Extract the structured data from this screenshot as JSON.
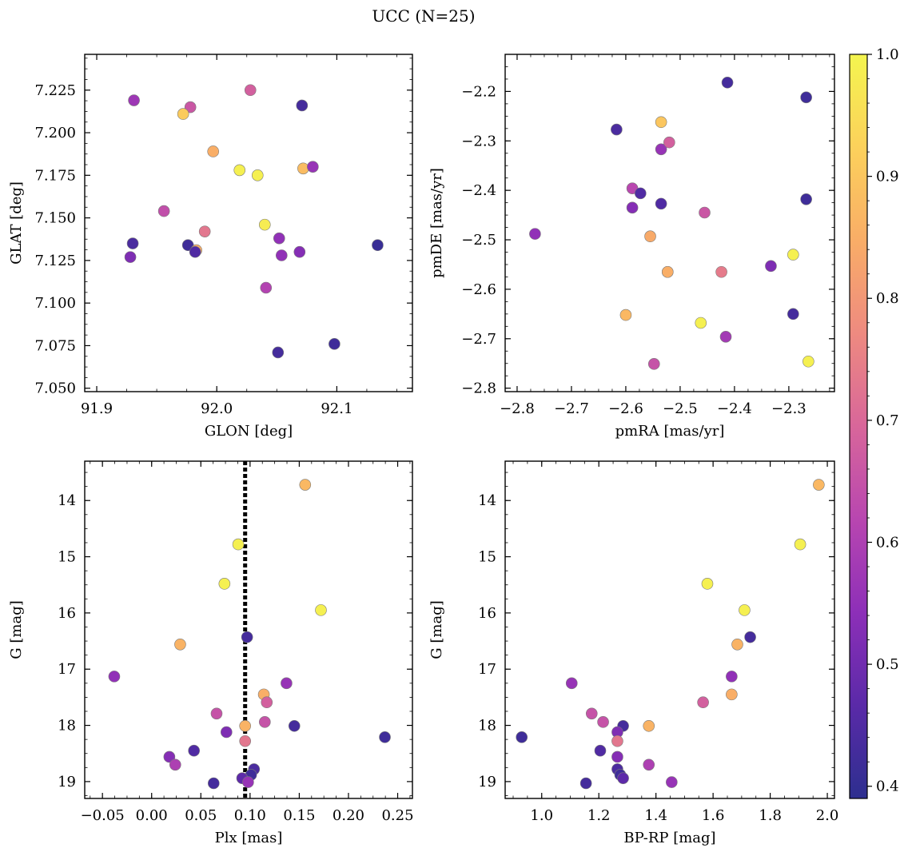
{
  "figure_title": "UCC (N=25)",
  "colorbar": {
    "min": 0.39,
    "max": 1.0,
    "ticks": [
      0.4,
      0.5,
      0.6,
      0.7,
      0.8,
      0.9,
      1.0
    ],
    "tick_labels": [
      "0.4",
      "0.5",
      "0.6",
      "0.7",
      "0.8",
      "0.9",
      "1.0"
    ],
    "colormap": "plasma",
    "stops": [
      "#2d2f8f",
      "#5a2aa8",
      "#8d2fb8",
      "#b846b0",
      "#d8669a",
      "#ee8a80",
      "#f9ad67",
      "#fcd15b",
      "#f4f54f"
    ]
  },
  "chart_data": [
    {
      "type": "scatter",
      "id": "glon-glat",
      "title": "",
      "xlabel": "GLON [deg]",
      "ylabel": "GLAT [deg]",
      "xlim": [
        91.89,
        92.163
      ],
      "ylim": [
        7.048,
        7.246
      ],
      "y_inverted": false,
      "xticks": [
        91.9,
        92.0,
        92.1
      ],
      "xtick_labels": [
        "91.9",
        "92.0",
        "92.1"
      ],
      "yticks": [
        7.05,
        7.075,
        7.1,
        7.125,
        7.15,
        7.175,
        7.2,
        7.225
      ],
      "ytick_labels": [
        "7.050",
        "7.075",
        "7.100",
        "7.125",
        "7.150",
        "7.175",
        "7.200",
        "7.225"
      ],
      "x": [
        91.931,
        92.028,
        92.071,
        91.978,
        91.972,
        91.997,
        92.019,
        92.034,
        92.072,
        92.08,
        91.956,
        92.04,
        91.99,
        91.93,
        91.976,
        91.983,
        91.982,
        92.052,
        92.054,
        92.069,
        92.134,
        92.041,
        92.051,
        92.098,
        91.928
      ],
      "y": [
        7.219,
        7.225,
        7.216,
        7.215,
        7.211,
        7.189,
        7.178,
        7.175,
        7.179,
        7.18,
        7.154,
        7.146,
        7.142,
        7.135,
        7.134,
        7.131,
        7.13,
        7.138,
        7.128,
        7.13,
        7.134,
        7.109,
        7.071,
        7.076,
        7.127
      ],
      "c": [
        0.57,
        0.68,
        0.43,
        0.66,
        0.91,
        0.85,
        0.99,
        0.99,
        0.88,
        0.56,
        0.64,
        0.98,
        0.73,
        0.44,
        0.42,
        0.85,
        0.45,
        0.55,
        0.55,
        0.53,
        0.41,
        0.61,
        0.43,
        0.42,
        0.52
      ]
    },
    {
      "type": "scatter",
      "id": "pmra-pmde",
      "title": "",
      "xlabel": "pmRA [mas/yr]",
      "ylabel": "pmDE [mas/yr]",
      "xlim": [
        -2.822,
        -2.216
      ],
      "ylim": [
        -2.807,
        -2.125
      ],
      "y_inverted": false,
      "xticks": [
        -2.8,
        -2.7,
        -2.6,
        -2.5,
        -2.4,
        -2.3
      ],
      "xtick_labels": [
        "−2.8",
        "−2.7",
        "−2.6",
        "−2.5",
        "−2.4",
        "−2.3"
      ],
      "yticks": [
        -2.8,
        -2.7,
        -2.6,
        -2.5,
        -2.4,
        -2.3,
        -2.2
      ],
      "ytick_labels": [
        "−2.8",
        "−2.7",
        "−2.6",
        "−2.5",
        "−2.4",
        "−2.3",
        "−2.2"
      ],
      "x": [
        -2.413,
        -2.268,
        -2.617,
        -2.535,
        -2.535,
        -2.52,
        -2.588,
        -2.573,
        -2.535,
        -2.588,
        -2.455,
        -2.268,
        -2.767,
        -2.555,
        -2.292,
        -2.333,
        -2.523,
        -2.523,
        -2.424,
        -2.6,
        -2.462,
        -2.292,
        -2.416,
        -2.264,
        -2.548
      ],
      "y": [
        -2.182,
        -2.212,
        -2.277,
        -2.262,
        -2.317,
        -2.303,
        -2.396,
        -2.406,
        -2.427,
        -2.435,
        -2.445,
        -2.418,
        -2.488,
        -2.493,
        -2.53,
        -2.553,
        -2.565,
        -2.565,
        -2.565,
        -2.652,
        -2.668,
        -2.65,
        -2.696,
        -2.746,
        -2.751
      ],
      "c": [
        0.43,
        0.42,
        0.44,
        0.9,
        0.56,
        0.68,
        0.62,
        0.45,
        0.45,
        0.53,
        0.66,
        0.42,
        0.55,
        0.84,
        0.99,
        0.52,
        0.43,
        0.85,
        0.74,
        0.87,
        0.99,
        0.43,
        0.58,
        0.99,
        0.65
      ]
    },
    {
      "type": "scatter",
      "id": "plx-g",
      "title": "",
      "xlabel": "Plx [mas]",
      "ylabel": "G [mag]",
      "xlim": [
        -0.068,
        0.265
      ],
      "ylim": [
        19.3,
        13.3
      ],
      "y_inverted": true,
      "xticks": [
        -0.05,
        0.0,
        0.05,
        0.1,
        0.15,
        0.2,
        0.25
      ],
      "xtick_labels": [
        "−0.05",
        "0.00",
        "0.05",
        "0.10",
        "0.15",
        "0.20",
        "0.25"
      ],
      "yticks": [
        14,
        15,
        16,
        17,
        18,
        19
      ],
      "ytick_labels": [
        "14",
        "15",
        "16",
        "17",
        "18",
        "19"
      ],
      "vline": {
        "x": 0.095,
        "style": "dotted"
      },
      "x": [
        0.156,
        0.088,
        0.074,
        0.172,
        0.097,
        0.029,
        -0.038,
        0.137,
        0.114,
        0.117,
        0.066,
        0.115,
        0.095,
        0.145,
        0.076,
        0.237,
        0.095,
        0.043,
        0.018,
        0.024,
        0.104,
        0.101,
        0.092,
        0.098,
        0.063
      ],
      "y": [
        13.72,
        14.78,
        15.48,
        15.95,
        16.43,
        16.56,
        17.13,
        17.25,
        17.45,
        17.59,
        17.79,
        17.94,
        18.01,
        18.01,
        18.12,
        18.21,
        18.28,
        18.45,
        18.56,
        18.7,
        18.78,
        18.88,
        18.94,
        19.01,
        19.03
      ],
      "c": [
        0.87,
        0.99,
        0.99,
        0.99,
        0.43,
        0.86,
        0.55,
        0.56,
        0.85,
        0.68,
        0.65,
        0.65,
        0.86,
        0.43,
        0.52,
        0.42,
        0.73,
        0.45,
        0.53,
        0.6,
        0.44,
        0.42,
        0.47,
        0.56,
        0.43
      ]
    },
    {
      "type": "scatter",
      "id": "bprp-g",
      "title": "",
      "xlabel": "BP-RP [mag]",
      "ylabel": "G [mag]",
      "xlim": [
        0.872,
        2.025
      ],
      "ylim": [
        19.3,
        13.3
      ],
      "y_inverted": true,
      "xticks": [
        1.0,
        1.2,
        1.4,
        1.6,
        1.8,
        2.0
      ],
      "xtick_labels": [
        "1.0",
        "1.2",
        "1.4",
        "1.6",
        "1.8",
        "2.0"
      ],
      "yticks": [
        14,
        15,
        16,
        17,
        18,
        19
      ],
      "ytick_labels": [
        "14",
        "15",
        "16",
        "17",
        "18",
        "19"
      ],
      "x": [
        1.97,
        1.905,
        1.58,
        1.71,
        1.73,
        1.685,
        1.665,
        1.105,
        1.665,
        1.565,
        1.175,
        1.215,
        1.375,
        1.285,
        1.265,
        0.93,
        1.265,
        1.205,
        1.265,
        1.375,
        1.265,
        1.275,
        1.285,
        1.455,
        1.155
      ],
      "y": [
        13.72,
        14.78,
        15.48,
        15.95,
        16.43,
        16.56,
        17.13,
        17.25,
        17.45,
        17.59,
        17.79,
        17.94,
        18.01,
        18.01,
        18.12,
        18.21,
        18.28,
        18.45,
        18.56,
        18.7,
        18.78,
        18.88,
        18.94,
        19.01,
        19.03
      ],
      "c": [
        0.87,
        0.99,
        0.99,
        0.99,
        0.43,
        0.86,
        0.55,
        0.56,
        0.85,
        0.68,
        0.65,
        0.65,
        0.86,
        0.43,
        0.52,
        0.42,
        0.73,
        0.45,
        0.53,
        0.6,
        0.44,
        0.42,
        0.47,
        0.56,
        0.43
      ]
    }
  ]
}
